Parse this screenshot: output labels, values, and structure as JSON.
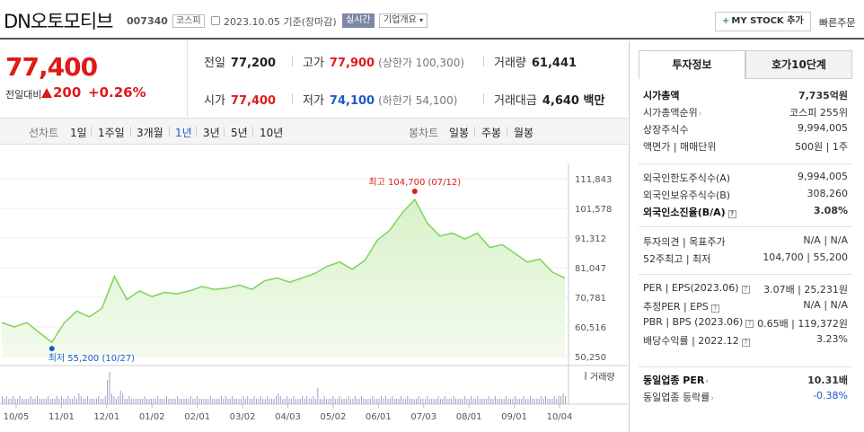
{
  "header": {
    "name": "DN오토모티브",
    "code": "007340",
    "market": "코스피",
    "date": "2023.10.05",
    "basis": "기준(장마감)",
    "realtime": "실시간",
    "company_info": "기업개요",
    "my_stock": "MY STOCK 추가",
    "quick_order": "빠른주문"
  },
  "price": {
    "current": "77,400",
    "change_label": "전일대비",
    "change": "200",
    "change_pct": "+0.26%"
  },
  "stats": {
    "prev_label": "전일",
    "prev": "77,200",
    "high_label": "고가",
    "high": "77,900",
    "upper_limit": "(상한가 100,300)",
    "volume_label": "거래량",
    "volume": "61,441",
    "open_label": "시가",
    "open": "77,400",
    "low_label": "저가",
    "low": "74,100",
    "lower_limit": "(하한가 54,100)",
    "amount_label": "거래대금",
    "amount": "4,640 백만"
  },
  "period_bar": {
    "line_chart": "선차트",
    "periods": [
      "1일",
      "1주일",
      "3개월",
      "1년",
      "3년",
      "5년",
      "10년"
    ],
    "selected": "1년",
    "candle_chart": "봉차트",
    "candles": [
      "일봉",
      "주봉",
      "월봉"
    ]
  },
  "chart_data": {
    "type": "area",
    "y_ticks": [
      "111,843",
      "101,578",
      "91,312",
      "81,047",
      "70,781",
      "60,516",
      "50,250"
    ],
    "ylim": [
      50250,
      111843
    ],
    "x_ticks": [
      "10/05",
      "11/01",
      "12/01",
      "01/02",
      "02/01",
      "03/02",
      "04/03",
      "05/02",
      "06/01",
      "07/03",
      "08/01",
      "09/01",
      "10/04"
    ],
    "max_label": "최고 104,700 (07/12)",
    "min_label": "최저 55,200 (10/27)",
    "volume_label": "거래량",
    "colors": {
      "line": "#7dd35a",
      "fill": "#d8f2c8",
      "max_dot": "#e01a1a",
      "min_dot": "#1a5bc9"
    },
    "price_series": [
      [
        "10/05",
        62000
      ],
      [
        "10/10",
        60500
      ],
      [
        "10/15",
        62000
      ],
      [
        "10/20",
        58500
      ],
      [
        "10/27",
        55200
      ],
      [
        "11/01",
        62000
      ],
      [
        "11/05",
        66000
      ],
      [
        "11/10",
        64000
      ],
      [
        "11/15",
        67000
      ],
      [
        "11/20",
        78000
      ],
      [
        "11/25",
        70000
      ],
      [
        "12/01",
        73000
      ],
      [
        "12/10",
        71000
      ],
      [
        "12/20",
        72500
      ],
      [
        "01/02",
        72000
      ],
      [
        "01/15",
        73000
      ],
      [
        "02/01",
        74500
      ],
      [
        "02/15",
        73500
      ],
      [
        "03/02",
        74000
      ],
      [
        "03/15",
        75000
      ],
      [
        "03/25",
        73500
      ],
      [
        "04/03",
        76500
      ],
      [
        "04/15",
        77500
      ],
      [
        "04/25",
        76000
      ],
      [
        "05/02",
        77500
      ],
      [
        "05/12",
        79000
      ],
      [
        "05/22",
        81500
      ],
      [
        "06/01",
        83000
      ],
      [
        "06/10",
        80500
      ],
      [
        "06/20",
        83500
      ],
      [
        "06/25",
        90500
      ],
      [
        "07/03",
        94000
      ],
      [
        "07/08",
        100000
      ],
      [
        "07/12",
        104700
      ],
      [
        "07/18",
        96500
      ],
      [
        "07/25",
        92000
      ],
      [
        "08/01",
        93000
      ],
      [
        "08/10",
        91000
      ],
      [
        "08/20",
        93000
      ],
      [
        "09/01",
        88000
      ],
      [
        "09/10",
        89000
      ],
      [
        "09/15",
        86000
      ],
      [
        "09/20",
        83000
      ],
      [
        "09/25",
        84000
      ],
      [
        "10/01",
        79500
      ],
      [
        "10/04",
        77400
      ]
    ],
    "volume_series": [
      3,
      2,
      3,
      2,
      2,
      3,
      2,
      2,
      3,
      2,
      2,
      2,
      2,
      3,
      2,
      2,
      3,
      2,
      2,
      2,
      2,
      3,
      2,
      2,
      2,
      3,
      2,
      3,
      2,
      2,
      3,
      2,
      2,
      3,
      2,
      4,
      3,
      2,
      2,
      3,
      2,
      2,
      2,
      2,
      3,
      2,
      2,
      3,
      9,
      12,
      4,
      3,
      2,
      3,
      5,
      4,
      2,
      2,
      3,
      2,
      2,
      2,
      2,
      2,
      2,
      3,
      2,
      2,
      2,
      2,
      2,
      3,
      2,
      2,
      2,
      3,
      2,
      2,
      2,
      2,
      3,
      2,
      2,
      2,
      2,
      2,
      3,
      2,
      2,
      3,
      2,
      2,
      2,
      2,
      2,
      3,
      2,
      2,
      2,
      2,
      3,
      2,
      3,
      2,
      2,
      3,
      2,
      2,
      2,
      2,
      3,
      2,
      3,
      2,
      2,
      3,
      2,
      2,
      3,
      2,
      2,
      3,
      2,
      2,
      2,
      3,
      4,
      3,
      2,
      2,
      3,
      2,
      2,
      3,
      2,
      2,
      2,
      3,
      2,
      3,
      2,
      2,
      3,
      2,
      6,
      2,
      2,
      3,
      2,
      2,
      2,
      3,
      2,
      2,
      3,
      2,
      2,
      2,
      3,
      2,
      2,
      3,
      2,
      2,
      3,
      2,
      2,
      2,
      2,
      3,
      2,
      2,
      2,
      3,
      2,
      3,
      2,
      2,
      3,
      2,
      2,
      2,
      3,
      2,
      2,
      3,
      2,
      2,
      2,
      2,
      3,
      2,
      2,
      2,
      3,
      2,
      2,
      2,
      2,
      3,
      2,
      2,
      3,
      2,
      2,
      2,
      3,
      2,
      2,
      2,
      2,
      3,
      2,
      2,
      3,
      2,
      2,
      3,
      2,
      2,
      2,
      2,
      3,
      2,
      2,
      3,
      2,
      2,
      2,
      2,
      3,
      2,
      2,
      2,
      3,
      2,
      2,
      2,
      3,
      2,
      2,
      3,
      2,
      2,
      2,
      2,
      3,
      2,
      3,
      2,
      2,
      2,
      3,
      2,
      3,
      3,
      4,
      3
    ]
  },
  "invest_panel": {
    "tab_invest": "투자정보",
    "tab_orderbook": "호가10단계",
    "rows1": [
      {
        "k": "시가총액",
        "v": "7,735억원",
        "bold": true
      },
      {
        "k": "시가총액순위",
        "v": "코스피 255위",
        "arrow": true
      },
      {
        "k": "상장주식수",
        "v": "9,994,005"
      },
      {
        "k": "액면가 | 매매단위",
        "v": "500원 | 1주"
      }
    ],
    "rows2": [
      {
        "k": "외국인한도주식수(A)",
        "v": "9,994,005"
      },
      {
        "k": "외국인보유주식수(B)",
        "v": "308,260"
      },
      {
        "k": "외국인소진율(B/A)",
        "v": "3.08%",
        "bold": true,
        "q": true
      }
    ],
    "rows3": [
      {
        "k": "투자의견 | 목표주가",
        "v": "N/A | N/A"
      },
      {
        "k": "52주최고 | 최저",
        "v": "104,700 | 55,200"
      }
    ],
    "rows4": [
      {
        "k": "PER | EPS(2023.06)",
        "v": "3.07배 | 25,231원",
        "q": true
      },
      {
        "k": "추정PER | EPS",
        "v": "N/A | N/A",
        "q": true
      },
      {
        "k": "PBR | BPS (2023.06)",
        "v": "0.65배 | 119,372원",
        "q": true
      },
      {
        "k": "배당수익률 | 2022.12",
        "v": "3.23%",
        "q": true
      }
    ],
    "rows5": [
      {
        "k": "동일업종 PER",
        "v": "10.31배",
        "bold": true,
        "arrow": true
      },
      {
        "k": "동일업종 등락률",
        "v": "-0.38%",
        "blue": true,
        "arrow": true
      }
    ]
  }
}
